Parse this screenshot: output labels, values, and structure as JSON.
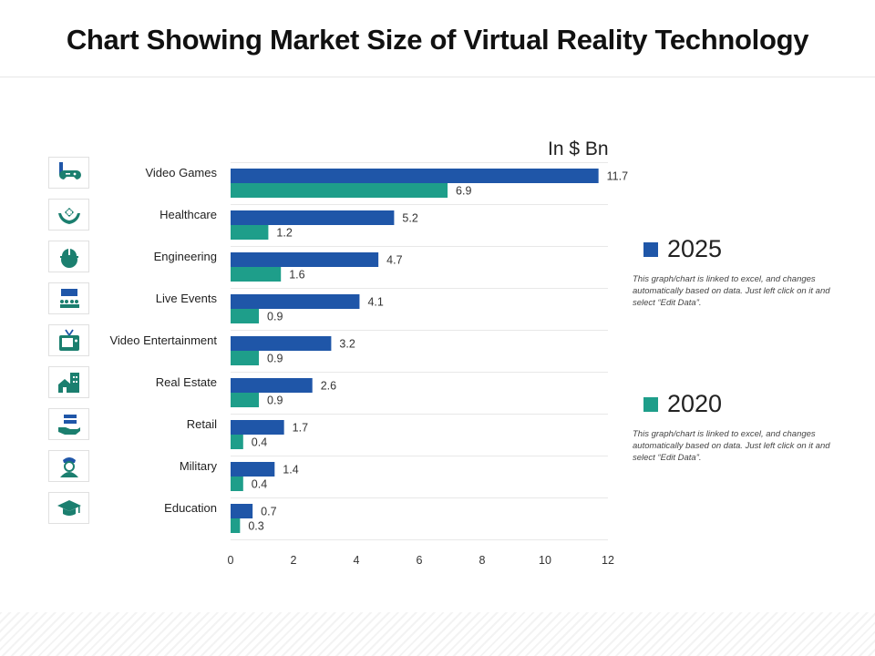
{
  "title": "Chart Showing Market Size of Virtual Reality Technology",
  "unit_label": "In $ Bn",
  "colors": {
    "series_2025": "#1f56a8",
    "series_2020": "#1e9e8a",
    "icon": "#1b7f6f",
    "icon_dark": "#1f56a8"
  },
  "legend": [
    {
      "label": "2025",
      "note": "This graph/chart is linked to excel, and changes automatically  based on data. Just left click  on it and select “Edit Data”."
    },
    {
      "label": "2020",
      "note": "This graph/chart is linked to excel, and changes automatically  based on data. Just left click  on it and select “Edit Data”."
    }
  ],
  "icons": [
    "gamepad-icon",
    "healthcare-hands-icon",
    "engineering-helmet-icon",
    "live-events-icon",
    "tv-icon",
    "real-estate-icon",
    "retail-icon",
    "military-icon",
    "graduation-cap-icon"
  ],
  "chart_data": {
    "type": "bar",
    "orientation": "horizontal",
    "title": "Chart Showing Market Size of Virtual Reality Technology",
    "unit": "In $ Bn",
    "categories": [
      "Video Games",
      "Healthcare",
      "Engineering",
      "Live Events",
      "Video Entertainment",
      "Real Estate",
      "Retail",
      "Military",
      "Education"
    ],
    "series": [
      {
        "name": "2025",
        "values": [
          11.7,
          5.2,
          4.7,
          4.1,
          3.2,
          2.6,
          1.7,
          1.4,
          0.7
        ],
        "labels": [
          "11.7",
          "5.2",
          "4.7",
          "4.1",
          "3.2",
          "2.6",
          "1.7",
          "1.4",
          "0.7"
        ]
      },
      {
        "name": "2020",
        "values": [
          6.9,
          1.2,
          1.6,
          0.9,
          0.9,
          0.9,
          0.4,
          0.4,
          0.3
        ],
        "labels": [
          "6.9",
          "1.2",
          "1.6",
          "0.9",
          "0.9",
          "0.9",
          "0.4",
          "0.4",
          "0.3"
        ]
      }
    ],
    "xlim": [
      0,
      12
    ],
    "xticks": [
      0,
      2,
      4,
      6,
      8,
      10,
      12
    ],
    "xtick_labels": [
      "0",
      "2",
      "4",
      "6",
      "8",
      "10",
      "12"
    ],
    "grid": "horizontal-row-separators",
    "legend_position": "right"
  }
}
